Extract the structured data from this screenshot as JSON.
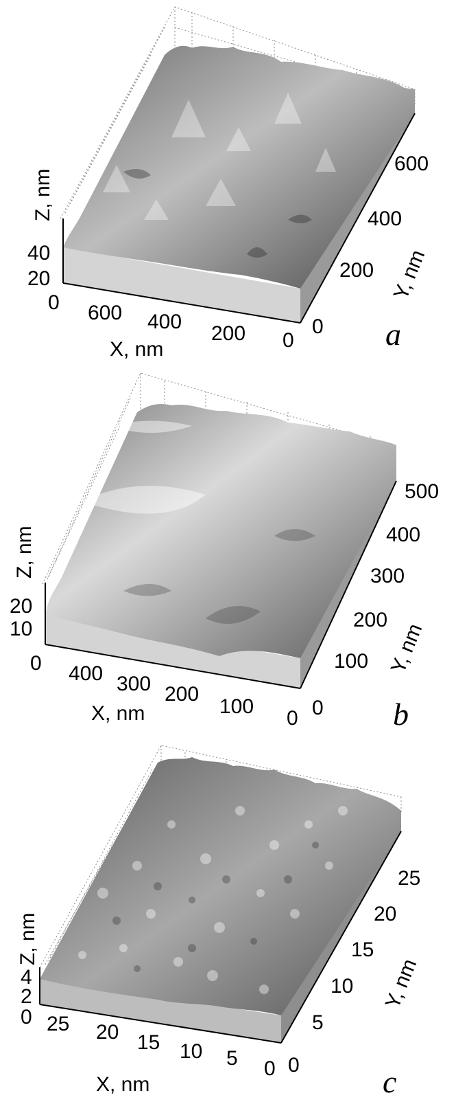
{
  "figure": {
    "panels": [
      {
        "label": "a",
        "x_axis": {
          "label": "X,  nm",
          "ticks": [
            "0",
            "600",
            "400",
            "200",
            "0"
          ]
        },
        "y_axis": {
          "label": "Y,  nm",
          "ticks": [
            "0",
            "200",
            "400",
            "600"
          ]
        },
        "z_axis": {
          "label": "Z,  nm",
          "ticks": [
            "20",
            "40"
          ]
        },
        "surface": {
          "roughness": 0.42,
          "feature_density": 0.55
        }
      },
      {
        "label": "b",
        "x_axis": {
          "label": "X,  nm",
          "ticks": [
            "0",
            "400",
            "300",
            "200",
            "100",
            "0"
          ]
        },
        "y_axis": {
          "label": "Y,  nm",
          "ticks": [
            "0",
            "100",
            "200",
            "300",
            "400",
            "500"
          ]
        },
        "z_axis": {
          "label": "Z,  nm",
          "ticks": [
            "10",
            "20"
          ]
        },
        "surface": {
          "roughness": 0.3,
          "feature_density": 0.35
        }
      },
      {
        "label": "c",
        "x_axis": {
          "label": "X,  nm",
          "ticks": [
            "25",
            "20",
            "15",
            "10",
            "5",
            "0"
          ]
        },
        "y_axis": {
          "label": "Y,  nm",
          "ticks": [
            "0",
            "5",
            "10",
            "15",
            "20",
            "25"
          ]
        },
        "z_axis": {
          "label": "Z,  nm",
          "ticks": [
            "0",
            "2",
            "4"
          ]
        },
        "surface": {
          "roughness": 0.5,
          "feature_density": 0.9
        }
      }
    ],
    "colors": {
      "surface_light": "#f2f2f2",
      "surface_dark": "#3a3a3a",
      "side_wall": "#cfcfcf",
      "axis": "#000000",
      "grid": "#8a8a8a"
    }
  }
}
